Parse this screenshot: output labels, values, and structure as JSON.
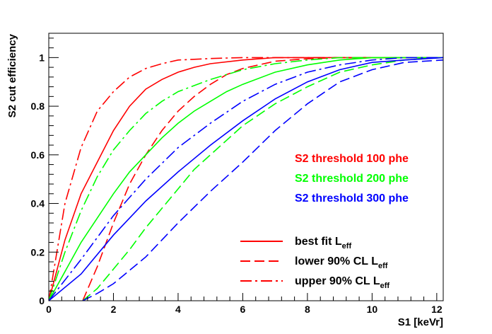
{
  "chart_data": {
    "type": "line",
    "title": "",
    "xlabel": "S1 [keVr]",
    "ylabel": "S2 cut efficiency",
    "xlim": [
      0,
      12.2
    ],
    "ylim": [
      0,
      1.1
    ],
    "xticks": [
      0,
      2,
      4,
      6,
      8,
      10,
      12
    ],
    "xtick_labels": [
      "0",
      "2",
      "4",
      "6",
      "8",
      "10",
      "12"
    ],
    "yticks": [
      0,
      0.2,
      0.4,
      0.6,
      0.8,
      1
    ],
    "ytick_labels": [
      "0",
      "0.2",
      "0.4",
      "0.6",
      "0.8",
      "1"
    ],
    "grid": false,
    "threshold_labels": [
      {
        "text": "S2 threshold 100 phe",
        "color": "#ff0000"
      },
      {
        "text": "S2 threshold 200 phe",
        "color": "#00ff00"
      },
      {
        "text": "S2 threshold 300 phe",
        "color": "#0000ff"
      }
    ],
    "legend": {
      "placement": "bottom-right",
      "entries": [
        {
          "style": "solid",
          "text": "best fit L",
          "sub": "eff"
        },
        {
          "style": "dashed",
          "text": "lower 90% CL L",
          "sub": "eff"
        },
        {
          "style": "dashdot",
          "text": "upper 90% CL L",
          "sub": "eff"
        }
      ]
    },
    "series": [
      {
        "threshold": "100 phe",
        "style": "solid",
        "color": "#ff0000",
        "x": [
          0,
          0.5,
          1,
          1.5,
          2,
          2.5,
          3,
          3.5,
          4,
          4.5,
          5,
          6,
          7,
          8,
          10,
          12.2
        ],
        "y": [
          0,
          0.25,
          0.44,
          0.57,
          0.7,
          0.8,
          0.87,
          0.91,
          0.94,
          0.96,
          0.975,
          0.99,
          1.0,
          1.0,
          1.0,
          1.0
        ]
      },
      {
        "threshold": "100 phe",
        "style": "dashed",
        "color": "#ff0000",
        "x": [
          1.05,
          1.5,
          2,
          2.5,
          3,
          3.5,
          4,
          4.5,
          5,
          5.5,
          6,
          7,
          8,
          9,
          10,
          12.2
        ],
        "y": [
          0,
          0.14,
          0.32,
          0.48,
          0.6,
          0.7,
          0.78,
          0.84,
          0.89,
          0.93,
          0.955,
          0.985,
          0.995,
          1.0,
          1.0,
          1.0
        ]
      },
      {
        "threshold": "100 phe",
        "style": "dashdot",
        "color": "#ff0000",
        "x": [
          0,
          0.5,
          1,
          1.5,
          2,
          2.5,
          3,
          3.5,
          4,
          4.5,
          5,
          6,
          8,
          12.2
        ],
        "y": [
          0,
          0.4,
          0.63,
          0.78,
          0.86,
          0.92,
          0.955,
          0.975,
          0.99,
          0.993,
          0.996,
          1.0,
          1.0,
          1.0
        ]
      },
      {
        "threshold": "200 phe",
        "style": "solid",
        "color": "#00ff00",
        "x": [
          0,
          0.5,
          1,
          1.5,
          2,
          2.5,
          3,
          3.5,
          4,
          4.5,
          5,
          5.5,
          6,
          7,
          8,
          9,
          10,
          12.2
        ],
        "y": [
          0,
          0.12,
          0.24,
          0.34,
          0.44,
          0.53,
          0.6,
          0.67,
          0.73,
          0.78,
          0.82,
          0.86,
          0.89,
          0.94,
          0.97,
          0.99,
          1.0,
          1.0
        ]
      },
      {
        "threshold": "200 phe",
        "style": "dashed",
        "color": "#00ff00",
        "x": [
          1.05,
          1.5,
          2,
          2.5,
          3,
          3.5,
          4,
          4.5,
          5,
          5.5,
          6,
          7,
          8,
          9,
          10,
          11,
          12.2
        ],
        "y": [
          0,
          0.05,
          0.13,
          0.21,
          0.3,
          0.38,
          0.46,
          0.54,
          0.6,
          0.66,
          0.72,
          0.81,
          0.88,
          0.94,
          0.97,
          0.99,
          1.0
        ]
      },
      {
        "threshold": "200 phe",
        "style": "dashdot",
        "color": "#00ff00",
        "x": [
          0,
          0.5,
          1,
          1.5,
          2,
          2.5,
          3,
          3.5,
          4,
          5,
          6,
          7,
          8,
          9,
          10,
          12.2
        ],
        "y": [
          0,
          0.2,
          0.37,
          0.51,
          0.62,
          0.7,
          0.77,
          0.82,
          0.86,
          0.91,
          0.95,
          0.975,
          0.99,
          1.0,
          1.0,
          1.0
        ]
      },
      {
        "threshold": "300 phe",
        "style": "solid",
        "color": "#0000ff",
        "x": [
          0,
          1,
          2,
          3,
          4,
          5,
          6,
          7,
          8,
          9,
          10,
          11,
          12.2
        ],
        "y": [
          0,
          0.11,
          0.27,
          0.41,
          0.53,
          0.64,
          0.74,
          0.83,
          0.9,
          0.95,
          0.98,
          0.99,
          1.0
        ]
      },
      {
        "threshold": "300 phe",
        "style": "dashed",
        "color": "#0000ff",
        "x": [
          1.05,
          1.5,
          2,
          3,
          4,
          5,
          6,
          7,
          8,
          9,
          10,
          11,
          12.2
        ],
        "y": [
          0,
          0.03,
          0.07,
          0.18,
          0.32,
          0.45,
          0.57,
          0.7,
          0.81,
          0.9,
          0.95,
          0.98,
          0.99
        ]
      },
      {
        "threshold": "300 phe",
        "style": "dashdot",
        "color": "#0000ff",
        "x": [
          0,
          1,
          2,
          3,
          4,
          5,
          6,
          7,
          8,
          9,
          10,
          11,
          12.2
        ],
        "y": [
          0,
          0.17,
          0.35,
          0.5,
          0.63,
          0.73,
          0.82,
          0.89,
          0.94,
          0.97,
          0.99,
          1.0,
          1.0
        ]
      }
    ]
  }
}
